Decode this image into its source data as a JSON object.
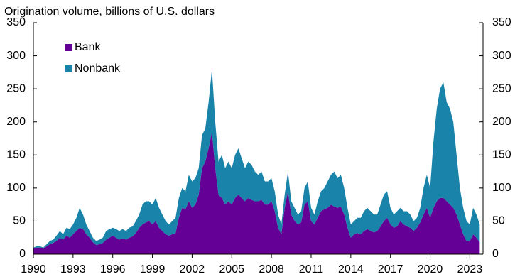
{
  "chart_data": {
    "type": "area",
    "stacked": true,
    "title": "Origination volume, billions of U.S. dollars",
    "x": [
      1990,
      1990.25,
      1990.5,
      1990.75,
      1991,
      1991.25,
      1991.5,
      1991.75,
      1992,
      1992.25,
      1992.5,
      1992.75,
      1993,
      1993.25,
      1993.5,
      1993.75,
      1994,
      1994.25,
      1994.5,
      1994.75,
      1995,
      1995.25,
      1995.5,
      1995.75,
      1996,
      1996.25,
      1996.5,
      1996.75,
      1997,
      1997.25,
      1997.5,
      1997.75,
      1998,
      1998.25,
      1998.5,
      1998.75,
      1999,
      1999.25,
      1999.5,
      1999.75,
      2000,
      2000.25,
      2000.5,
      2000.75,
      2001,
      2001.25,
      2001.5,
      2001.75,
      2002,
      2002.25,
      2002.5,
      2002.75,
      2003,
      2003.25,
      2003.5,
      2003.75,
      2004,
      2004.25,
      2004.5,
      2004.75,
      2005,
      2005.25,
      2005.5,
      2005.75,
      2006,
      2006.25,
      2006.5,
      2006.75,
      2007,
      2007.25,
      2007.5,
      2007.75,
      2008,
      2008.25,
      2008.5,
      2008.75,
      2009,
      2009.25,
      2009.5,
      2009.75,
      2010,
      2010.25,
      2010.5,
      2010.75,
      2011,
      2011.25,
      2011.5,
      2011.75,
      2012,
      2012.25,
      2012.5,
      2012.75,
      2013,
      2013.25,
      2013.5,
      2013.75,
      2014,
      2014.25,
      2014.5,
      2014.75,
      2015,
      2015.25,
      2015.5,
      2015.75,
      2016,
      2016.25,
      2016.5,
      2016.75,
      2017,
      2017.25,
      2017.5,
      2017.75,
      2018,
      2018.25,
      2018.5,
      2018.75,
      2019,
      2019.25,
      2019.5,
      2019.75,
      2020,
      2020.25,
      2020.5,
      2020.75,
      2021,
      2021.25,
      2021.5,
      2021.75,
      2022,
      2022.25,
      2022.5,
      2022.75,
      2023,
      2023.25,
      2023.5,
      2023.75
    ],
    "series": [
      {
        "name": "Bank",
        "color": "#640096",
        "values": [
          8,
          10,
          10,
          8,
          12,
          15,
          17,
          20,
          25,
          22,
          28,
          25,
          30,
          35,
          40,
          38,
          30,
          25,
          18,
          14,
          15,
          17,
          22,
          25,
          28,
          25,
          22,
          24,
          22,
          25,
          27,
          32,
          40,
          45,
          48,
          50,
          45,
          50,
          40,
          35,
          30,
          28,
          30,
          32,
          55,
          70,
          68,
          80,
          70,
          75,
          90,
          130,
          140,
          160,
          185,
          130,
          90,
          85,
          75,
          80,
          75,
          85,
          90,
          85,
          80,
          85,
          82,
          80,
          80,
          82,
          75,
          75,
          80,
          65,
          40,
          30,
          70,
          95,
          60,
          50,
          45,
          48,
          75,
          80,
          50,
          45,
          55,
          65,
          68,
          70,
          75,
          72,
          70,
          72,
          60,
          40,
          25,
          30,
          32,
          30,
          35,
          38,
          35,
          33,
          35,
          42,
          50,
          55,
          45,
          40,
          42,
          50,
          45,
          42,
          40,
          35,
          40,
          48,
          60,
          70,
          55,
          70,
          80,
          85,
          85,
          80,
          75,
          70,
          60,
          45,
          30,
          20,
          20,
          30,
          25,
          18
        ]
      },
      {
        "name": "Nonbank",
        "color": "#1983aa",
        "values": [
          2,
          2,
          2,
          2,
          3,
          5,
          5,
          8,
          10,
          8,
          12,
          13,
          15,
          20,
          30,
          22,
          15,
          10,
          7,
          6,
          7,
          8,
          13,
          13,
          12,
          13,
          13,
          14,
          13,
          15,
          15,
          18,
          20,
          30,
          32,
          30,
          30,
          35,
          30,
          25,
          20,
          17,
          20,
          23,
          30,
          30,
          27,
          40,
          40,
          40,
          40,
          50,
          50,
          70,
          95,
          70,
          50,
          65,
          55,
          60,
          55,
          65,
          70,
          60,
          50,
          55,
          53,
          45,
          40,
          43,
          35,
          35,
          35,
          30,
          20,
          15,
          20,
          30,
          20,
          20,
          15,
          17,
          25,
          30,
          20,
          15,
          25,
          30,
          32,
          40,
          45,
          53,
          45,
          48,
          40,
          30,
          20,
          20,
          23,
          25,
          30,
          32,
          30,
          27,
          25,
          33,
          40,
          40,
          25,
          20,
          23,
          20,
          20,
          23,
          20,
          15,
          15,
          22,
          40,
          50,
          45,
          100,
          140,
          165,
          175,
          150,
          145,
          130,
          90,
          55,
          40,
          30,
          25,
          40,
          35,
          27
        ]
      }
    ],
    "xlim": [
      1990,
      2024
    ],
    "xticks": [
      1990,
      1993,
      1996,
      1999,
      2002,
      2005,
      2008,
      2011,
      2014,
      2017,
      2020,
      2023
    ],
    "ylim": [
      0,
      350
    ],
    "yticks": [
      0,
      50,
      100,
      150,
      200,
      250,
      300,
      350
    ],
    "y2lim": [
      0,
      350
    ],
    "y2ticks": [
      0,
      50,
      100,
      150,
      200,
      250,
      300,
      350
    ],
    "legend": "upper left"
  }
}
